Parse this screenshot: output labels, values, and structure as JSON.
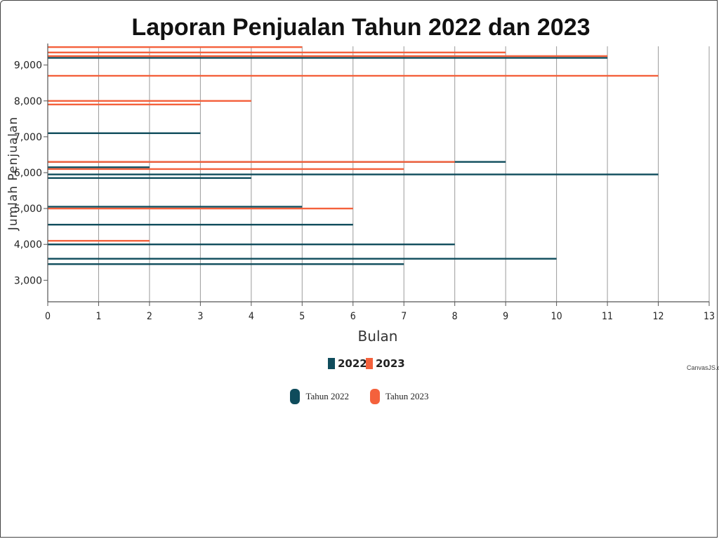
{
  "chart_data": {
    "type": "bar",
    "title": "Laporan Penjualan Tahun 2022 dan 2023",
    "xlabel": "Bulan",
    "ylabel": "Jumlah Penjualan",
    "xlim": [
      0,
      13
    ],
    "ylim": [
      2400,
      9600
    ],
    "xticks": [
      "0",
      "1",
      "2",
      "3",
      "4",
      "5",
      "6",
      "7",
      "8",
      "9",
      "10",
      "11",
      "12",
      "13"
    ],
    "yticks": [
      "3,000",
      "4,000",
      "5,000",
      "6,000",
      "7,000",
      "8,000",
      "9,000"
    ],
    "ytick_values": [
      3000,
      4000,
      5000,
      6000,
      7000,
      8000,
      9000
    ],
    "grid": true,
    "legend_position": "bottom",
    "credit": "CanvasJS.com",
    "series": [
      {
        "name": "2022",
        "color": "#0f4c5c",
        "values": [
          {
            "x": 7,
            "y": 3450
          },
          {
            "x": 10,
            "y": 3600
          },
          {
            "x": 1,
            "y": 4000
          },
          {
            "x": 8,
            "y": 4000
          },
          {
            "x": 6,
            "y": 4550
          },
          {
            "x": 5,
            "y": 5050
          },
          {
            "x": 4,
            "y": 5850
          },
          {
            "x": 12,
            "y": 5950
          },
          {
            "x": 2,
            "y": 6150
          },
          {
            "x": 9,
            "y": 6300
          },
          {
            "x": 3,
            "y": 7100
          },
          {
            "x": 11,
            "y": 9200
          }
        ]
      },
      {
        "name": "2023",
        "color": "#f4613c",
        "values": [
          {
            "x": 2,
            "y": 4100
          },
          {
            "x": 6,
            "y": 5000
          },
          {
            "x": 7,
            "y": 6100
          },
          {
            "x": 8,
            "y": 6300
          },
          {
            "x": 3,
            "y": 7900
          },
          {
            "x": 4,
            "y": 8000
          },
          {
            "x": 12,
            "y": 8700
          },
          {
            "x": 11,
            "y": 9250
          },
          {
            "x": 9,
            "y": 9350
          },
          {
            "x": 5,
            "y": 9500
          }
        ]
      }
    ]
  },
  "legend_top": [
    {
      "label": "2022",
      "color": "#0f4c5c"
    },
    {
      "label": "2023",
      "color": "#f4613c"
    }
  ],
  "legend_bottom": [
    {
      "label": "Tahun 2022",
      "color": "#0f4c5c"
    },
    {
      "label": "Tahun 2023",
      "color": "#f4613c"
    }
  ]
}
